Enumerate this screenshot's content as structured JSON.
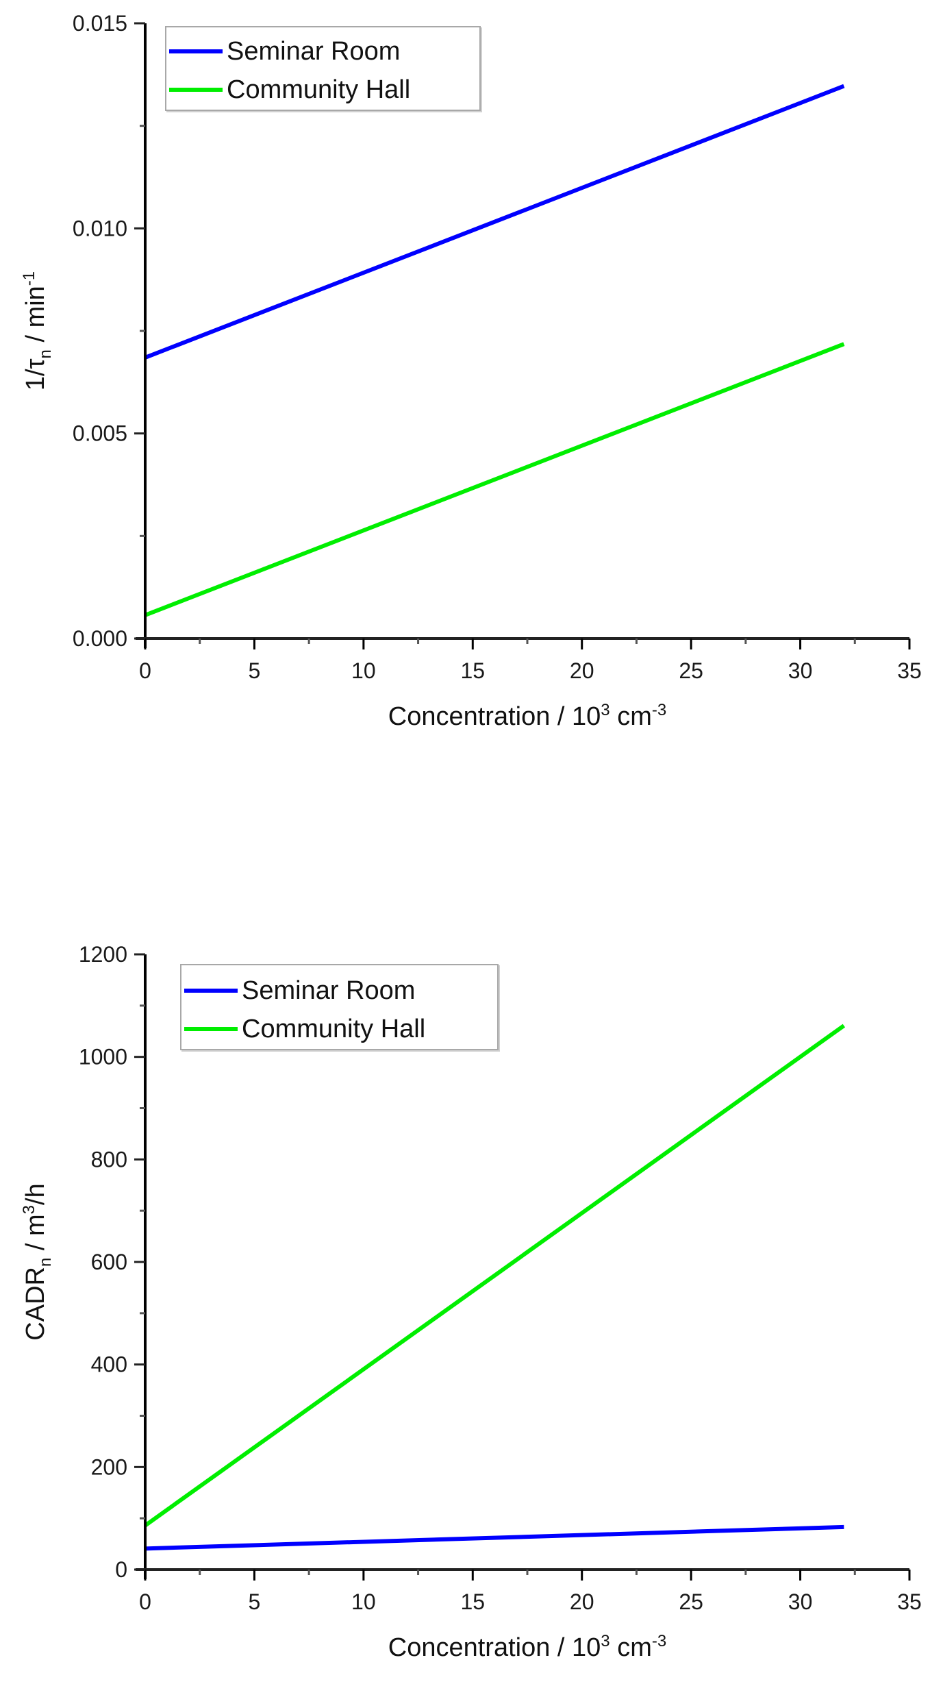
{
  "colors": {
    "seminar_room": "#0000ff",
    "community_hall": "#00ee00",
    "axis": "#000000",
    "legend_border": "#a8a8a8"
  },
  "legend": {
    "items": [
      {
        "label": "Seminar Room",
        "color": "#0000ff"
      },
      {
        "label": "Community Hall",
        "color": "#00ee00"
      }
    ]
  },
  "chart_data": [
    {
      "type": "line",
      "title": "",
      "xlabel": "Concentration / 10^3 cm^-3",
      "ylabel": "1/τn / min^-1",
      "xlim": [
        0,
        35
      ],
      "ylim": [
        0,
        0.015
      ],
      "xticks": [
        0,
        5,
        10,
        15,
        20,
        25,
        30,
        35
      ],
      "yticks": [
        0.0,
        0.005,
        0.01,
        0.015
      ],
      "ytick_labels": [
        "0.000",
        "0.005",
        "0.010",
        "0.015"
      ],
      "grid": false,
      "legend_position": "upper left",
      "series": [
        {
          "name": "Seminar Room",
          "x": [
            0,
            32
          ],
          "y": [
            0.00685,
            0.01347
          ]
        },
        {
          "name": "Community Hall",
          "x": [
            0,
            32
          ],
          "y": [
            0.00057,
            0.00718
          ]
        }
      ]
    },
    {
      "type": "line",
      "title": "",
      "xlabel": "Concentration / 10^3 cm^-3",
      "ylabel": "CADRn / m^3/h",
      "xlim": [
        0,
        35
      ],
      "ylim": [
        0,
        1200
      ],
      "xticks": [
        0,
        5,
        10,
        15,
        20,
        25,
        30,
        35
      ],
      "yticks": [
        0,
        200,
        400,
        600,
        800,
        1000,
        1200
      ],
      "ytick_labels": [
        "0",
        "200",
        "400",
        "600",
        "800",
        "1000",
        "1200"
      ],
      "grid": false,
      "legend_position": "upper left",
      "series": [
        {
          "name": "Seminar Room",
          "x": [
            0,
            32
          ],
          "y": [
            41,
            83
          ]
        },
        {
          "name": "Community Hall",
          "x": [
            0,
            32
          ],
          "y": [
            86,
            1061
          ]
        }
      ]
    }
  ],
  "charts": {
    "top": {
      "xlabel_main": "Concentration / 10",
      "xlabel_sup1": "3",
      "xlabel_mid": " cm",
      "xlabel_sup2": "-3",
      "ylabel_main": "1/τ",
      "ylabel_sub": "n",
      "ylabel_mid": " / min",
      "ylabel_sup": "-1",
      "legend_items": [
        "Seminar Room",
        "Community Hall"
      ]
    },
    "bottom": {
      "xlabel_main": "Concentration / 10",
      "xlabel_sup1": "3",
      "xlabel_mid": " cm",
      "xlabel_sup2": "-3",
      "ylabel_main": "CADR",
      "ylabel_sub": "n",
      "ylabel_mid": " / m",
      "ylabel_sup": "3",
      "ylabel_end": "/h",
      "legend_items": [
        "Seminar Room",
        "Community Hall"
      ]
    }
  }
}
